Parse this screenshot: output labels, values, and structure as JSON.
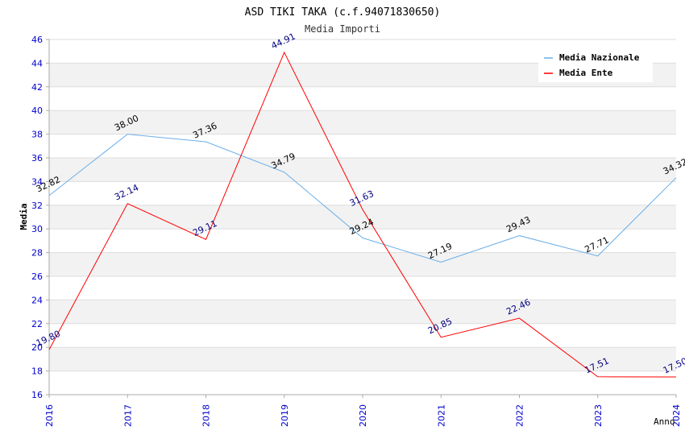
{
  "chart_data": {
    "type": "line",
    "title": "ASD TIKI TAKA (c.f.94071830650)",
    "subtitle": "Media Importi",
    "xlabel": "Anno",
    "ylabel": "Media",
    "categories": [
      "2016",
      "2017",
      "2018",
      "2019",
      "2020",
      "2021",
      "2022",
      "2023",
      "2024"
    ],
    "ylim": [
      16,
      46
    ],
    "ytick_step": 2,
    "grid": true,
    "legend_position": "top-right",
    "series": [
      {
        "name": "Media Nazionale",
        "color": "#6aaee8",
        "label_color": "#000000",
        "values": [
          32.82,
          38.0,
          37.36,
          34.79,
          29.24,
          27.19,
          29.43,
          27.71,
          34.32
        ],
        "labels": [
          "32.82",
          "38.00",
          "37.36",
          "34.79",
          "29.24",
          "27.19",
          "29.43",
          "27.71",
          "34.32"
        ]
      },
      {
        "name": "Media Ente",
        "color": "#ff0000",
        "label_color": "#000080",
        "values": [
          19.8,
          32.14,
          29.11,
          44.91,
          31.63,
          20.85,
          22.46,
          17.51,
          17.5
        ],
        "labels": [
          "19.80",
          "32.14",
          "29.11",
          "44.91",
          "31.63",
          "20.85",
          "22.46",
          "17.51",
          "17.50"
        ]
      }
    ]
  }
}
